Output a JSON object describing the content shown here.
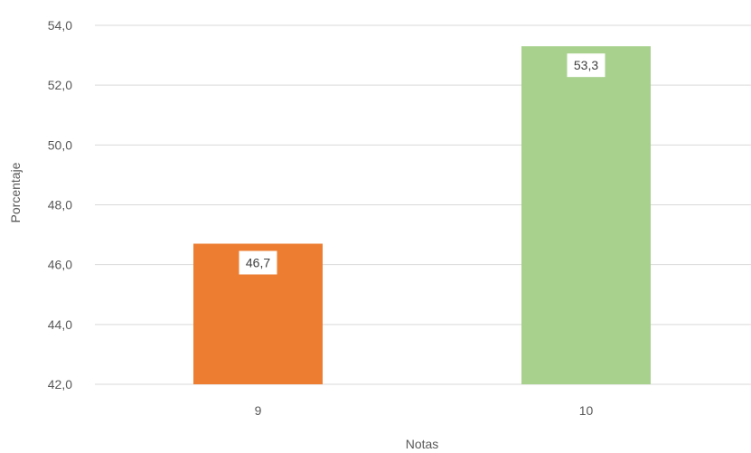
{
  "chart_data": {
    "type": "bar",
    "categories": [
      "9",
      "10"
    ],
    "values": [
      46.7,
      53.3
    ],
    "data_labels": [
      "46,7",
      "53,3"
    ],
    "colors": [
      "#ED7D31",
      "#A9D18E"
    ],
    "xlabel": "Notas",
    "ylabel": "Porcentaje",
    "ylim": [
      42.0,
      54.0
    ],
    "yticks": [
      "42,0",
      "44,0",
      "46,0",
      "48,0",
      "50,0",
      "52,0",
      "54,0"
    ],
    "grid": true,
    "gridColor": "#D9D9D9"
  }
}
